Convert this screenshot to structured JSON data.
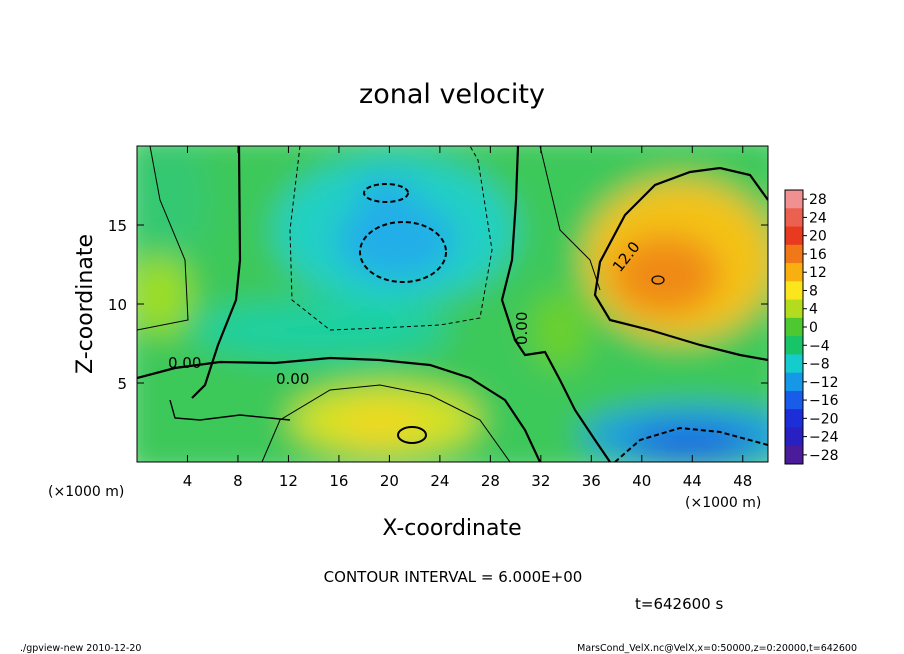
{
  "chart_data": {
    "type": "heatmap",
    "title": "zonal velocity",
    "xlabel": "X-coordinate",
    "ylabel": "Z-coordinate",
    "x_unit": "(×1000 m)",
    "y_unit": "(×1000 m)",
    "xlim": [
      0,
      50
    ],
    "ylim": [
      0,
      20
    ],
    "x_ticks": [
      4,
      8,
      12,
      16,
      20,
      24,
      28,
      32,
      36,
      40,
      44,
      48
    ],
    "y_ticks": [
      5,
      10,
      15
    ],
    "x_tick_labels": [
      "4",
      "8",
      "12",
      "16",
      "20",
      "24",
      "28",
      "32",
      "36",
      "40",
      "44",
      "48"
    ],
    "y_tick_labels": [
      "5",
      "10",
      "15"
    ],
    "colorbar": {
      "levels": [
        -28,
        -24,
        -20,
        -16,
        -12,
        -8,
        -4,
        0,
        4,
        8,
        12,
        16,
        20,
        24,
        28
      ],
      "labels": [
        "28",
        "24",
        "20",
        "16",
        "12",
        "8",
        "4",
        "0",
        "−4",
        "−8",
        "−12",
        "−16",
        "−20",
        "−24",
        "−28"
      ],
      "colors": [
        "#f09090",
        "#ec6050",
        "#e83a1e",
        "#f07818",
        "#f8b010",
        "#fbe51c",
        "#b4dc1e",
        "#4ec832",
        "#18c468",
        "#14cccc",
        "#1698e8",
        "#1a5cea",
        "#1c2ed8",
        "#2820c0",
        "#4a1c9c"
      ]
    },
    "contour_interval": "CONTOUR INTERVAL = 6.000E+00",
    "contour_labels": [
      "0.00",
      "0.00",
      "0.00",
      "12.0"
    ],
    "features": [
      {
        "name": "positive maximum",
        "x": 42,
        "z": 12,
        "value": 16
      },
      {
        "name": "negative minimum (upper)",
        "x": 20.5,
        "z": 14,
        "value": -10
      },
      {
        "name": "negative minimum (bottom right)",
        "x": 45,
        "z": 1.5,
        "value": -18
      },
      {
        "name": "positive bulge (bottom)",
        "x": 22,
        "z": 3,
        "value": 9
      }
    ],
    "time": "t=642600 s"
  },
  "footer": {
    "left": "./gpview-new  2010-12-20",
    "right": "MarsCond_VelX.nc@VelX,x=0:50000,z=0:20000,t=642600"
  }
}
